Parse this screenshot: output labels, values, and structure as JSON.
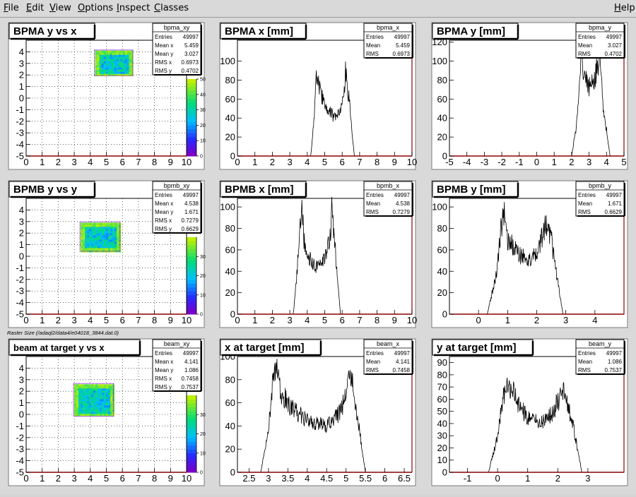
{
  "menu": {
    "items": [
      {
        "first": "F",
        "rest": "ile"
      },
      {
        "first": "E",
        "rest": "dit"
      },
      {
        "first": "V",
        "rest": "iew"
      },
      {
        "first": "O",
        "rest": "ptions"
      },
      {
        "first": "I",
        "rest": "nspect"
      },
      {
        "first": "C",
        "rest": "lasses"
      }
    ],
    "help": {
      "first": "H",
      "rest": "elp"
    }
  },
  "caption": "Raster Size (/adaql2/data4/e04018_3844.dat.0)",
  "colors": {
    "frame": "#000000",
    "axis_x": "#8b0000",
    "hist": "#000000",
    "pad": "#ffffff",
    "pad_border": "#7a7a7a"
  },
  "chart_data": [
    {
      "type": "heatmap",
      "title": "BPMA y vs x",
      "xlim": [
        0,
        10
      ],
      "ylim": [
        -5,
        5
      ],
      "xticks": [
        "0",
        "1",
        "2",
        "3",
        "4",
        "5",
        "6",
        "7",
        "8",
        "9",
        "10"
      ],
      "yticks": [
        "-5",
        "-4",
        "-3",
        "-2",
        "-1",
        "0",
        "1",
        "2",
        "3",
        "4"
      ],
      "rect": {
        "x": [
          4.3,
          6.6
        ],
        "y": [
          2.0,
          4.1
        ]
      },
      "palette": {
        "zmax": 50,
        "zticks": [
          "0",
          "10",
          "20",
          "30",
          "40",
          "50"
        ]
      },
      "stats": {
        "name": "bpma_xy",
        "rows": [
          [
            "Entries",
            "49997"
          ],
          [
            "Mean x",
            "5.459"
          ],
          [
            "Mean y",
            "3.027"
          ],
          [
            "RMS x",
            "0.6973"
          ],
          [
            "RMS y",
            "0.4702"
          ]
        ]
      }
    },
    {
      "type": "line",
      "title": "BPMA x [mm]",
      "xlim": [
        0,
        10
      ],
      "ylim": [
        0,
        122
      ],
      "xticks": [
        "0",
        "1",
        "2",
        "3",
        "4",
        "5",
        "6",
        "7",
        "8",
        "9",
        "10"
      ],
      "yticks": [
        "0",
        "20",
        "40",
        "60",
        "80",
        "100"
      ],
      "x": [
        0,
        4.2,
        4.4,
        4.5,
        4.6,
        4.7,
        5.0,
        5.5,
        5.9,
        6.1,
        6.2,
        6.4,
        6.7,
        10
      ],
      "y": [
        0,
        0,
        40,
        95,
        80,
        70,
        52,
        42,
        50,
        62,
        93,
        60,
        0,
        0
      ],
      "stats": {
        "name": "bpma_x",
        "rows": [
          [
            "Entries",
            "49997"
          ],
          [
            "Mean",
            "5.459"
          ],
          [
            "RMS",
            "0.6973"
          ]
        ]
      }
    },
    {
      "type": "line",
      "title": "BPMA y [mm]",
      "xlim": [
        -5,
        5
      ],
      "ylim": [
        0,
        122
      ],
      "xticks": [
        "-5",
        "-4",
        "-3",
        "-2",
        "-1",
        "0",
        "1",
        "2",
        "3",
        "4",
        "5"
      ],
      "yticks": [
        "0",
        "20",
        "40",
        "60",
        "80",
        "100",
        "120"
      ],
      "x": [
        -5,
        2.0,
        2.3,
        2.5,
        2.6,
        2.7,
        3.0,
        3.3,
        3.5,
        3.6,
        3.8,
        4.2,
        5
      ],
      "y": [
        0,
        0,
        35,
        100,
        112,
        85,
        72,
        80,
        98,
        105,
        55,
        0,
        0
      ],
      "stats": {
        "name": "bpma_y",
        "rows": [
          [
            "Entries",
            "49997"
          ],
          [
            "Mean",
            "3.027"
          ],
          [
            "RMS",
            "0.4702"
          ]
        ]
      }
    },
    {
      "type": "heatmap",
      "title": "BPMB y vs y",
      "xlim": [
        0,
        10
      ],
      "ylim": [
        -5,
        5
      ],
      "xticks": [
        "0",
        "1",
        "2",
        "3",
        "4",
        "5",
        "6",
        "7",
        "8",
        "9",
        "10"
      ],
      "yticks": [
        "-5",
        "-4",
        "-3",
        "-2",
        "-1",
        "0",
        "1",
        "2",
        "3",
        "4"
      ],
      "rect": {
        "x": [
          3.4,
          5.8
        ],
        "y": [
          0.5,
          2.9
        ]
      },
      "palette": {
        "zmax": 40,
        "zticks": [
          "0",
          "10",
          "20",
          "30"
        ]
      },
      "stats": {
        "name": "bpmb_xy",
        "rows": [
          [
            "Entries",
            "49997"
          ],
          [
            "Mean x",
            "4.538"
          ],
          [
            "Mean y",
            "1.671"
          ],
          [
            "RMS x",
            "0.7279"
          ],
          [
            "RMS y",
            "0.6629"
          ]
        ]
      }
    },
    {
      "type": "line",
      "title": "BPMB x [mm]",
      "xlim": [
        0,
        10
      ],
      "ylim": [
        0,
        108
      ],
      "xticks": [
        "0",
        "1",
        "2",
        "3",
        "4",
        "5",
        "6",
        "7",
        "8",
        "9",
        "10"
      ],
      "yticks": [
        "0",
        "20",
        "40",
        "60",
        "80",
        "100"
      ],
      "x": [
        0,
        3.2,
        3.4,
        3.6,
        3.7,
        3.8,
        4.2,
        4.6,
        5.0,
        5.3,
        5.4,
        5.6,
        5.9,
        10
      ],
      "y": [
        0,
        0,
        35,
        90,
        100,
        70,
        50,
        43,
        52,
        70,
        97,
        60,
        0,
        0
      ],
      "stats": {
        "name": "bpmb_x",
        "rows": [
          [
            "Entries",
            "49997"
          ],
          [
            "Mean",
            "4.538"
          ],
          [
            "RMS",
            "0.7279"
          ]
        ]
      }
    },
    {
      "type": "line",
      "title": "BPMB y [mm]",
      "xlim": [
        -1,
        5
      ],
      "ylim": [
        0,
        108
      ],
      "xticks": [
        "0",
        "1",
        "2",
        "3",
        "4"
      ],
      "yticks": [
        "0",
        "20",
        "40",
        "60",
        "80",
        "100"
      ],
      "x": [
        -1,
        0.3,
        0.6,
        0.8,
        0.9,
        1.0,
        1.4,
        1.8,
        2.1,
        2.3,
        2.5,
        2.9,
        5
      ],
      "y": [
        0,
        0,
        35,
        85,
        100,
        70,
        55,
        50,
        62,
        85,
        70,
        0,
        0
      ],
      "stats": {
        "name": "bpmb_y",
        "rows": [
          [
            "Entries",
            "49997"
          ],
          [
            "Mean",
            "1.671"
          ],
          [
            "RMS",
            "0.6629"
          ]
        ]
      }
    },
    {
      "type": "heatmap",
      "title": "beam at target y vs x",
      "xlim": [
        0,
        10
      ],
      "ylim": [
        -5,
        5
      ],
      "xticks": [
        "0",
        "1",
        "2",
        "3",
        "4",
        "5",
        "6",
        "7",
        "8",
        "9",
        "10"
      ],
      "yticks": [
        "-5",
        "-4",
        "-3",
        "-2",
        "-1",
        "0",
        "1",
        "2",
        "3",
        "4"
      ],
      "rect": {
        "x": [
          3.0,
          5.4
        ],
        "y": [
          -0.1,
          2.6
        ]
      },
      "palette": {
        "zmax": 40,
        "zticks": [
          "0",
          "10",
          "20",
          "30"
        ]
      },
      "stats": {
        "name": "beam_xy",
        "rows": [
          [
            "Entries",
            "49997"
          ],
          [
            "Mean x",
            "4.141"
          ],
          [
            "Mean y",
            "1.086"
          ],
          [
            "RMS x",
            "0.7458"
          ],
          [
            "RMS y",
            "0.7537"
          ]
        ]
      }
    },
    {
      "type": "line",
      "title": "x at target [mm]",
      "xlim": [
        2.2,
        6.7
      ],
      "ylim": [
        0,
        100
      ],
      "xticks": [
        "2.5",
        "3",
        "3.5",
        "4",
        "4.5",
        "5",
        "5.5",
        "6",
        "6.5"
      ],
      "yticks": [
        "0",
        "20",
        "40",
        "60",
        "80",
        "100"
      ],
      "x": [
        2.2,
        2.8,
        3.0,
        3.1,
        3.2,
        3.3,
        3.6,
        4.0,
        4.5,
        4.8,
        5.0,
        5.1,
        5.2,
        5.5,
        6.7
      ],
      "y": [
        0,
        0,
        35,
        75,
        92,
        70,
        55,
        45,
        40,
        50,
        65,
        90,
        70,
        0,
        0
      ],
      "stats": {
        "name": "beam_x",
        "rows": [
          [
            "Entries",
            "49997"
          ],
          [
            "Mean",
            "4.141"
          ],
          [
            "RMS",
            "0.7458"
          ]
        ]
      }
    },
    {
      "type": "line",
      "title": "y at target [mm]",
      "xlim": [
        -1.6,
        4.2
      ],
      "ylim": [
        0,
        95
      ],
      "xticks": [
        "-1",
        "0",
        "1",
        "2",
        "3"
      ],
      "yticks": [
        "0",
        "10",
        "20",
        "30",
        "40",
        "50",
        "60",
        "70",
        "80",
        "90"
      ],
      "x": [
        -1.6,
        -0.3,
        0,
        0.2,
        0.4,
        0.7,
        1.0,
        1.4,
        1.8,
        2.0,
        2.2,
        2.5,
        2.8,
        4.2
      ],
      "y": [
        0,
        0,
        30,
        65,
        72,
        55,
        45,
        40,
        48,
        58,
        65,
        40,
        0,
        0
      ],
      "stats": {
        "name": "beam_y",
        "rows": [
          [
            "Entries",
            "49997"
          ],
          [
            "Mean",
            "1.086"
          ],
          [
            "RMS",
            "0.7537"
          ]
        ]
      }
    }
  ]
}
